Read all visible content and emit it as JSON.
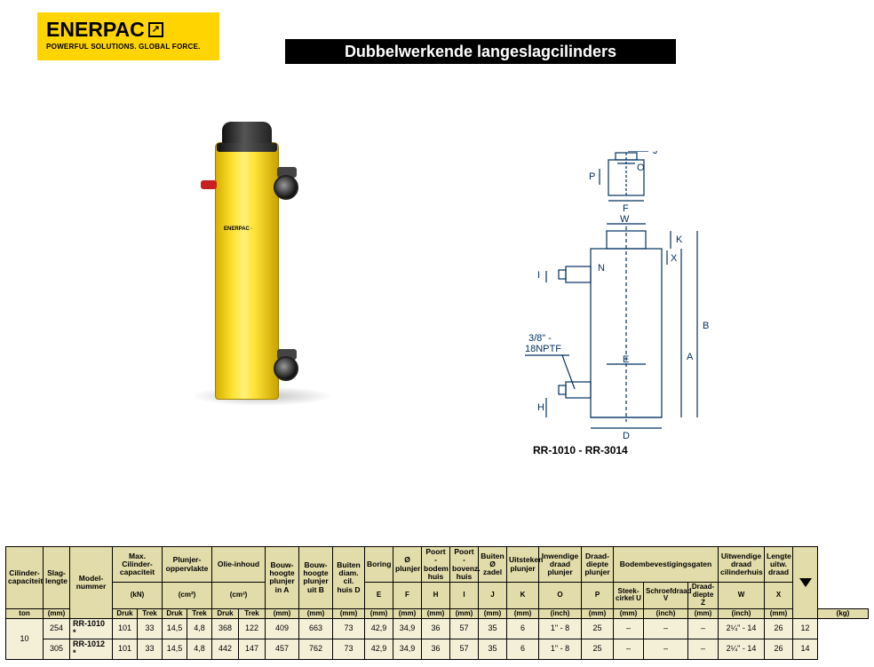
{
  "logo": {
    "brand": "ENERPAC",
    "arrow": "↗",
    "tagline": "POWERFUL SOLUTIONS. GLOBAL FORCE."
  },
  "title": "Dubbelwerkende langeslagcilinders",
  "product_label": "ENERPAC",
  "diagram": {
    "model_range": "RR-1010 - RR-3014",
    "labels": {
      "J": "J",
      "O": "O",
      "P": "P",
      "F": "F",
      "W": "W",
      "K": "K",
      "N": "N",
      "X": "X",
      "I": "I",
      "B": "B",
      "A": "A",
      "E": "E",
      "H": "H",
      "D": "D"
    },
    "port_note_1": "3/8\" -",
    "port_note_2": "18NPTF"
  },
  "spec": {
    "headers_row1": [
      "Cilinder- capaciteit",
      "Slag- lengte",
      "Model- nummer",
      "Max. Cilinder- capaciteit",
      "Plunjer- oppervlakte",
      "Olie-inhoud",
      "Bouw- hoogte plunjer in A",
      "Bouw- hoogte plunjer uit B",
      "Buiten diam. cil. huis D",
      "Boring",
      "Ø plunjer",
      "Poort - bodem huis",
      "Poort - bovenz. huis",
      "Buiten Ø zadel",
      "Uitsteken plunjer",
      "Inwendige draad plunjer",
      "Draad- diepte plunjer",
      "Bodembevestigingsgaten",
      "Uitwendige draad cilinderhuis",
      "Lengte uitw. draad",
      "wt"
    ],
    "headers_row2_letters": [
      "",
      "",
      "",
      "",
      "",
      "",
      "",
      "",
      "",
      "E",
      "F",
      "H",
      "I",
      "J",
      "K",
      "O",
      "P",
      "Steek- cirkel U",
      "Schroefdraad V",
      "Draad- diepte Z",
      "W",
      "X",
      ""
    ],
    "headers_row3_units": [
      "ton",
      "(mm)",
      "",
      "(kN)",
      "(cm²)",
      "(cm³)",
      "(mm)",
      "(mm)",
      "(mm)",
      "(mm)",
      "(mm)",
      "(mm)",
      "(mm)",
      "(mm)",
      "(mm)",
      "(inch)",
      "(mm)",
      "(mm)",
      "(inch)",
      "(mm)",
      "(inch)",
      "(mm)",
      "(kg)"
    ],
    "sub_pairs": {
      "capacity": [
        "Druk",
        "Trek"
      ],
      "area": [
        "Druk",
        "Trek"
      ],
      "oil": [
        "Druk",
        "Trek"
      ]
    },
    "capacity_value": "10",
    "rows": [
      {
        "stroke": "254",
        "model": "RR-1010 *",
        "cap_d": "101",
        "cap_t": "33",
        "area_d": "14,5",
        "area_t": "4,8",
        "oil_d": "368",
        "oil_t": "122",
        "A": "409",
        "B": "663",
        "D": "73",
        "E": "42,9",
        "F": "34,9",
        "H": "36",
        "I": "57",
        "J": "35",
        "K": "6",
        "O": "1\" - 8",
        "P": "25",
        "U": "–",
        "V": "–",
        "Z": "–",
        "W": "2¼\" - 14",
        "X": "26",
        "kg": "12"
      },
      {
        "stroke": "305",
        "model": "RR-1012 *",
        "cap_d": "101",
        "cap_t": "33",
        "area_d": "14,5",
        "area_t": "4,8",
        "oil_d": "442",
        "oil_t": "147",
        "A": "457",
        "B": "762",
        "D": "73",
        "E": "42,9",
        "F": "34,9",
        "H": "36",
        "I": "57",
        "J": "35",
        "K": "6",
        "O": "1\" - 8",
        "P": "25",
        "U": "–",
        "V": "–",
        "Z": "–",
        "W": "2¼\" - 14",
        "X": "26",
        "kg": "14"
      }
    ]
  }
}
